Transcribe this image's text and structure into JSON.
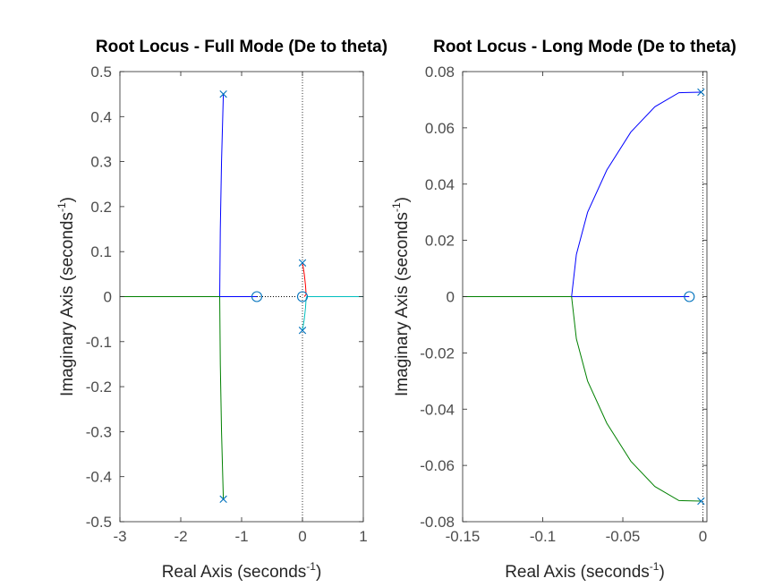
{
  "chart_data": [
    {
      "type": "root-locus",
      "title": "Root Locus - Full Mode (De to theta)",
      "xlabel": "Real Axis (seconds",
      "ylabel": "Imaginary Axis (seconds",
      "label_exponent": "-1",
      "label_close": ")",
      "xlim": [
        -3,
        1
      ],
      "ylim": [
        -0.5,
        0.5
      ],
      "xticks": [
        -3,
        -2,
        -1,
        0,
        1
      ],
      "yticks": [
        -0.5,
        -0.4,
        -0.3,
        -0.2,
        -0.1,
        0,
        0.1,
        0.2,
        0.3,
        0.4,
        0.5
      ],
      "xtick_labels": [
        "-3",
        "-2",
        "-1",
        "0",
        "1"
      ],
      "ytick_labels": [
        "-0.5",
        "-0.4",
        "-0.3",
        "-0.2",
        "-0.1",
        "0",
        "0.1",
        "0.2",
        "0.3",
        "0.4",
        "0.5"
      ],
      "grid": false,
      "imag_axis_dotted": true,
      "poles": [
        [
          -1.3,
          0.45
        ],
        [
          -1.3,
          -0.45
        ],
        [
          0,
          0.075
        ],
        [
          0,
          -0.075
        ]
      ],
      "zeros": [
        [
          -0.75,
          0
        ],
        [
          0,
          0
        ]
      ],
      "branches": [
        {
          "color": "#0000ff",
          "points": [
            [
              -1.3,
              0.45
            ],
            [
              -1.33,
              0.3
            ],
            [
              -1.35,
              0.15
            ],
            [
              -1.36,
              0.0
            ]
          ]
        },
        {
          "color": "#0000ff",
          "points": [
            [
              -1.36,
              0
            ],
            [
              -0.75,
              0
            ]
          ]
        },
        {
          "color": "#008000",
          "points": [
            [
              -1.3,
              -0.45
            ],
            [
              -1.33,
              -0.3
            ],
            [
              -1.35,
              -0.15
            ],
            [
              -1.36,
              0.0
            ]
          ]
        },
        {
          "color": "#008000",
          "points": [
            [
              -1.36,
              0
            ],
            [
              -3,
              0
            ]
          ]
        },
        {
          "color": "#ff0000",
          "points": [
            [
              0,
              0.075
            ],
            [
              0.03,
              0.05
            ],
            [
              0.05,
              0.025
            ],
            [
              0.06,
              0.005
            ],
            [
              0.03,
              0.0
            ]
          ]
        },
        {
          "color": "#00bfbf",
          "points": [
            [
              0,
              -0.075
            ],
            [
              0.03,
              -0.05
            ],
            [
              0.05,
              -0.025
            ],
            [
              0.06,
              -0.005
            ],
            [
              0.07,
              0.0
            ],
            [
              1,
              0
            ]
          ]
        }
      ],
      "dotted_segments": [
        [
          [
            -0.75,
            0
          ],
          [
            0,
            0
          ]
        ]
      ]
    },
    {
      "type": "root-locus",
      "title": "Root Locus - Long Mode (De to theta)",
      "xlabel": "Real Axis (seconds",
      "ylabel": "Imaginary Axis (seconds",
      "label_exponent": "-1",
      "label_close": ")",
      "xlim": [
        -0.15,
        0.0025
      ],
      "ylim": [
        -0.08,
        0.08
      ],
      "xticks": [
        -0.15,
        -0.1,
        -0.05,
        0
      ],
      "yticks": [
        -0.08,
        -0.06,
        -0.04,
        -0.02,
        0,
        0.02,
        0.04,
        0.06,
        0.08
      ],
      "xtick_labels": [
        "-0.15",
        "-0.1",
        "-0.05",
        "0"
      ],
      "ytick_labels": [
        "-0.08",
        "-0.06",
        "-0.04",
        "-0.02",
        "0",
        "0.02",
        "0.04",
        "0.06",
        "0.08"
      ],
      "grid": false,
      "imag_axis_dotted": true,
      "poles": [
        [
          -0.0012,
          0.0727
        ],
        [
          -0.0012,
          -0.0727
        ]
      ],
      "zeros": [
        [
          -0.0085,
          0
        ]
      ],
      "branches": [
        {
          "color": "#0000ff",
          "points": [
            [
              -0.0012,
              0.0727
            ],
            [
              -0.015,
              0.0725
            ],
            [
              -0.03,
              0.0675
            ],
            [
              -0.045,
              0.0585
            ],
            [
              -0.06,
              0.045
            ],
            [
              -0.072,
              0.03
            ],
            [
              -0.079,
              0.015
            ],
            [
              -0.082,
              0.0
            ]
          ]
        },
        {
          "color": "#0000ff",
          "points": [
            [
              -0.082,
              0
            ],
            [
              -0.0085,
              0
            ]
          ]
        },
        {
          "color": "#008000",
          "points": [
            [
              -0.0012,
              -0.0727
            ],
            [
              -0.015,
              -0.0725
            ],
            [
              -0.03,
              -0.0675
            ],
            [
              -0.045,
              -0.0585
            ],
            [
              -0.06,
              -0.045
            ],
            [
              -0.072,
              -0.03
            ],
            [
              -0.079,
              -0.015
            ],
            [
              -0.082,
              0.0
            ]
          ]
        },
        {
          "color": "#008000",
          "points": [
            [
              -0.082,
              0
            ],
            [
              -0.15,
              0
            ]
          ]
        }
      ],
      "dotted_segments": []
    }
  ]
}
